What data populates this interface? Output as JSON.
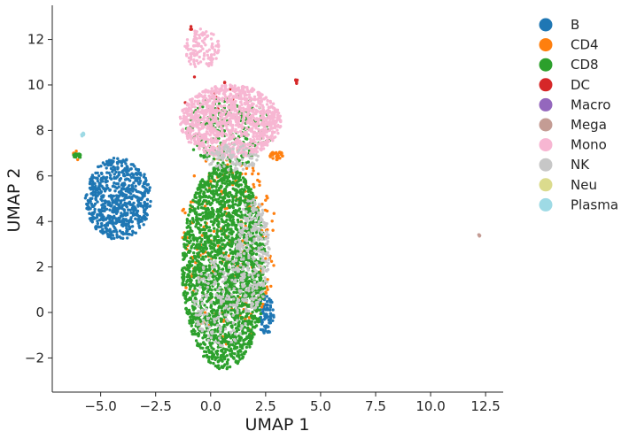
{
  "chart_data": {
    "type": "scatter",
    "title": "",
    "xlabel": "UMAP 1",
    "ylabel": "UMAP 2",
    "xlim": [
      -7.2,
      13.3
    ],
    "ylim": [
      -3.5,
      13.5
    ],
    "xticks": [
      -5.0,
      -2.5,
      0.0,
      2.5,
      5.0,
      7.5,
      10.0,
      12.5
    ],
    "xtick_labels": [
      "−5.0",
      "−2.5",
      "0.0",
      "2.5",
      "5.0",
      "7.5",
      "10.0",
      "12.5"
    ],
    "yticks": [
      -2,
      0,
      2,
      4,
      6,
      8,
      10,
      12
    ],
    "ytick_labels": [
      "−2",
      "0",
      "2",
      "4",
      "6",
      "8",
      "10",
      "12"
    ],
    "grid": false,
    "legend_position": "right-outside",
    "series": [
      {
        "name": "B",
        "color": "#1f77b4",
        "regions": [
          {
            "cx": -4.2,
            "cy": 5.0,
            "rx": 1.5,
            "ry": 1.8,
            "n": 700
          },
          {
            "cx": 2.5,
            "cy": -0.1,
            "rx": 0.4,
            "ry": 0.9,
            "n": 90
          }
        ]
      },
      {
        "name": "CD4",
        "color": "#ff7f0e",
        "regions": [
          {
            "cx": 0.8,
            "cy": 3.0,
            "rx": 2.2,
            "ry": 4.5,
            "n": 220
          },
          {
            "cx": 3.0,
            "cy": 6.9,
            "rx": 0.3,
            "ry": 0.2,
            "n": 30
          },
          {
            "cx": -6.1,
            "cy": 6.9,
            "rx": 0.2,
            "ry": 0.2,
            "n": 8
          }
        ]
      },
      {
        "name": "CD8",
        "color": "#2ca02c",
        "regions": [
          {
            "cx": 0.6,
            "cy": 2.0,
            "rx": 1.9,
            "ry": 4.5,
            "n": 2200
          },
          {
            "cx": 0.8,
            "cy": 8.0,
            "rx": 2.0,
            "ry": 1.6,
            "n": 250
          },
          {
            "cx": -6.1,
            "cy": 6.9,
            "rx": 0.2,
            "ry": 0.15,
            "n": 12
          }
        ]
      },
      {
        "name": "DC",
        "color": "#d62728",
        "regions": [
          {
            "cx": 3.9,
            "cy": 10.2,
            "rx": 0.05,
            "ry": 0.15,
            "n": 6
          },
          {
            "cx": -0.9,
            "cy": 12.5,
            "rx": 0.05,
            "ry": 0.1,
            "n": 3
          },
          {
            "cx": 0.0,
            "cy": 9.5,
            "rx": 1.5,
            "ry": 1.0,
            "n": 10
          }
        ]
      },
      {
        "name": "Macro",
        "color": "#9467bd",
        "regions": []
      },
      {
        "name": "Mega",
        "color": "#c49c94",
        "regions": [
          {
            "cx": 12.2,
            "cy": 3.4,
            "rx": 0.05,
            "ry": 0.05,
            "n": 4
          }
        ]
      },
      {
        "name": "Mono",
        "color": "#f7b6d2",
        "regions": [
          {
            "cx": 0.9,
            "cy": 8.4,
            "rx": 2.3,
            "ry": 1.6,
            "n": 1100
          },
          {
            "cx": -0.4,
            "cy": 11.6,
            "rx": 0.8,
            "ry": 0.9,
            "n": 120
          }
        ]
      },
      {
        "name": "NK",
        "color": "#c7c7c7",
        "regions": [
          {
            "cx": 1.9,
            "cy": 2.5,
            "rx": 0.8,
            "ry": 2.5,
            "n": 260
          },
          {
            "cx": 0.5,
            "cy": 0.5,
            "rx": 1.3,
            "ry": 2.0,
            "n": 180
          },
          {
            "cx": 1.0,
            "cy": 6.8,
            "rx": 1.2,
            "ry": 0.6,
            "n": 90
          }
        ]
      },
      {
        "name": "Neu",
        "color": "#dbdb8d",
        "regions": []
      },
      {
        "name": "Plasma",
        "color": "#9edae5",
        "regions": [
          {
            "cx": -5.8,
            "cy": 7.8,
            "rx": 0.08,
            "ry": 0.1,
            "n": 8
          }
        ]
      }
    ]
  }
}
